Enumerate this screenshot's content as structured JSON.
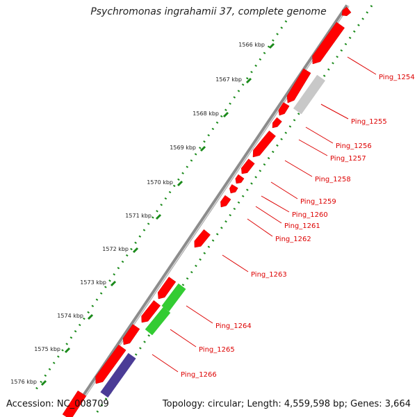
{
  "title": "Psychromonas ingrahamii 37, complete genome",
  "footer": {
    "accession": "Accession: NC_008709",
    "topology": "Topology: circular; Length: 4,559,598 bp; Genes: 3,664"
  },
  "ticks": [
    "1566 kbp",
    "1567 kbp",
    "1568 kbp",
    "1569 kbp",
    "1570 kbp",
    "1571 kbp",
    "1572 kbp",
    "1573 kbp",
    "1574 kbp",
    "1575 kbp",
    "1576 kbp"
  ],
  "genes": [
    {
      "label": "Ping_1254",
      "color": "#ff0000",
      "lane": "inner"
    },
    {
      "label": "Ping_1255",
      "color": "#c8c8c8",
      "lane": "outer"
    },
    {
      "label": "Ping_1256",
      "color": "#ff0000",
      "lane": "inner"
    },
    {
      "label": "Ping_1257",
      "color": "#ff0000",
      "lane": "inner"
    },
    {
      "label": "Ping_1258",
      "color": "#ff0000",
      "lane": "inner"
    },
    {
      "label": "Ping_1259",
      "color": "#ff0000",
      "lane": "inner"
    },
    {
      "label": "Ping_1260",
      "color": "#ff0000",
      "lane": "inner"
    },
    {
      "label": "Ping_1261",
      "color": "#ff0000",
      "lane": "inner"
    },
    {
      "label": "Ping_1262",
      "color": "#ff0000",
      "lane": "inner"
    },
    {
      "label": "Ping_1263",
      "color": "#ff0000",
      "lane": "inner"
    },
    {
      "label": "Ping_1264",
      "color": "#33cc33",
      "lane": "outer"
    },
    {
      "label": "Ping_1265",
      "color": "#33cc33",
      "lane": "outer"
    },
    {
      "label": "Ping_1266",
      "color": "#4b3c96",
      "lane": "outer"
    }
  ],
  "colors": {
    "backbone": "#8c8c8c",
    "tick_track": "#1a8a1a",
    "label": "#dd0000",
    "tick_label": "#222222"
  }
}
